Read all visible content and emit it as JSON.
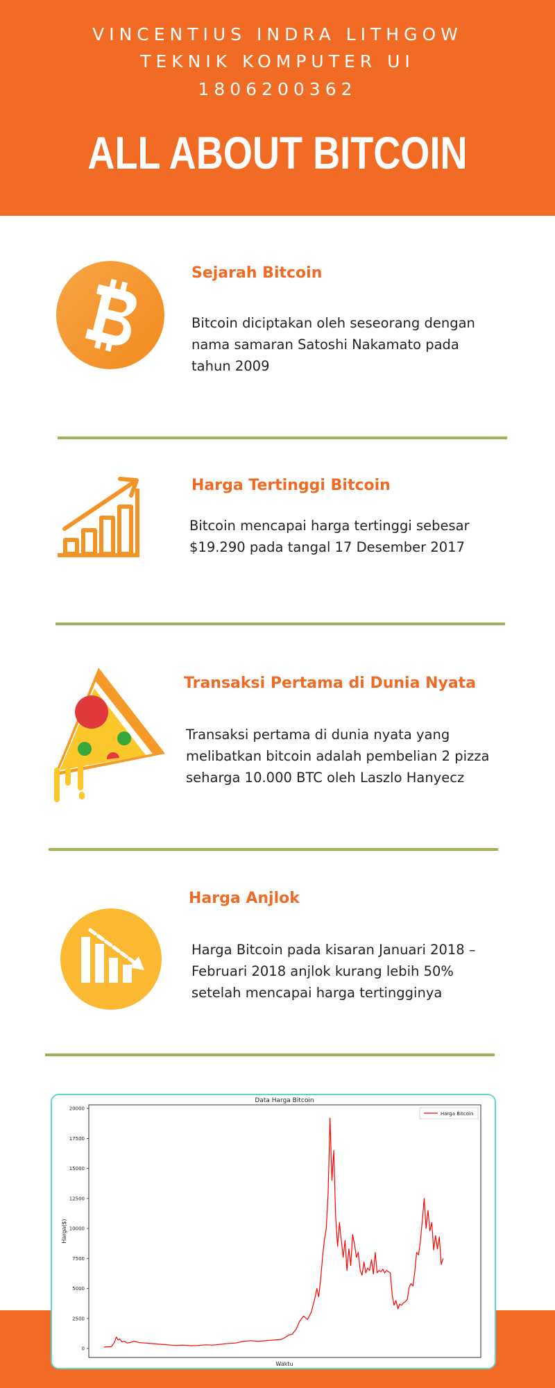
{
  "header": {
    "author_name": "VINCENTIUS INDRA LITHGOW",
    "department": "TEKNIK KOMPUTER UI",
    "student_id": "1806200362",
    "title": "ALL ABOUT BITCOIN"
  },
  "sections": [
    {
      "icon": "bitcoin-coin-icon",
      "title": "Sejarah Bitcoin",
      "text": "Bitcoin diciptakan oleh seseorang dengan\nnama samaran Satoshi Nakamato pada\ntahun 2009"
    },
    {
      "icon": "rising-bar-chart-icon",
      "title": "Harga Tertinggi Bitcoin",
      "text": "Bitcoin mencapai harga tertinggi sebesar\n$19.290 pada tangal 17 Desember 2017"
    },
    {
      "icon": "pizza-slice-icon",
      "title": "Transaksi Pertama di Dunia Nyata",
      "text": "Transaksi pertama di dunia nyata yang\nmelibatkan bitcoin adalah pembelian 2 pizza\nseharga 10.000 BTC oleh Laszlo Hanyecz"
    },
    {
      "icon": "falling-bar-chart-icon",
      "title": "Harga Anjlok",
      "text": "Harga Bitcoin pada kisaran Januari 2018 –\nFebruari 2018 anjlok kurang lebih 50%\nsetelah mencapai harga tertingginya"
    }
  ],
  "colors": {
    "accent_orange": "#f26b25",
    "title_orange": "#ef6a24",
    "divider_green": "#9db35a",
    "chart_line": "#ff0000",
    "chart_frame": "#5fd3d0"
  },
  "chart_data": {
    "type": "line",
    "title": "Data Harga Bitcoin",
    "xlabel": "Waktu",
    "ylabel": "Harga($)",
    "legend_position": "top-right",
    "grid": false,
    "ylim": [
      -750,
      20300
    ],
    "yticks": [
      0,
      2500,
      5000,
      7500,
      10000,
      12500,
      15000,
      17500,
      20000
    ],
    "x_tick_labels_shown": false,
    "xlim": [
      -40,
      1000
    ],
    "series": [
      {
        "name": "Harga Bitcoin",
        "x": [
          0,
          20,
          28,
          33,
          38,
          42,
          48,
          55,
          62,
          70,
          80,
          95,
          110,
          130,
          150,
          170,
          190,
          210,
          230,
          250,
          270,
          290,
          310,
          330,
          350,
          370,
          390,
          410,
          430,
          450,
          470,
          480,
          490,
          500,
          510,
          520,
          530,
          540,
          550,
          560,
          565,
          570,
          575,
          580,
          585,
          590,
          595,
          600,
          605,
          610,
          615,
          620,
          625,
          630,
          635,
          640,
          645,
          650,
          655,
          660,
          665,
          670,
          675,
          680,
          685,
          690,
          695,
          700,
          705,
          710,
          715,
          720,
          725,
          730,
          735,
          740,
          745,
          750,
          755,
          760,
          765,
          770,
          775,
          780,
          785,
          790,
          795,
          800,
          805,
          810,
          815,
          820,
          825,
          830,
          835,
          840,
          845,
          850,
          855,
          860,
          865,
          870,
          875,
          880,
          885,
          890,
          895,
          900
        ],
        "y": [
          120,
          150,
          500,
          950,
          700,
          800,
          550,
          600,
          450,
          500,
          600,
          480,
          450,
          400,
          350,
          300,
          250,
          280,
          230,
          250,
          300,
          280,
          350,
          420,
          450,
          600,
          650,
          600,
          650,
          700,
          750,
          900,
          1100,
          1200,
          1600,
          2300,
          2700,
          2400,
          3000,
          4200,
          5000,
          4300,
          5700,
          7500,
          9000,
          10000,
          13000,
          19200,
          14000,
          16500,
          11000,
          8500,
          10500,
          9000,
          7600,
          9000,
          6500,
          8300,
          6900,
          9500,
          8700,
          7600,
          8000,
          6500,
          6100,
          7200,
          6300,
          6700,
          6500,
          7400,
          6200,
          8000,
          6300,
          6500,
          6400,
          6600,
          6300,
          6500,
          6400,
          6300,
          4500,
          3600,
          4000,
          3300,
          3700,
          3600,
          3800,
          3900,
          4100,
          5100,
          5400,
          5200,
          6400,
          8000,
          7800,
          9000,
          10700,
          12500,
          10000,
          11500,
          9800,
          10500,
          8200,
          9400,
          8300,
          9300,
          7000,
          7500
        ]
      }
    ]
  }
}
